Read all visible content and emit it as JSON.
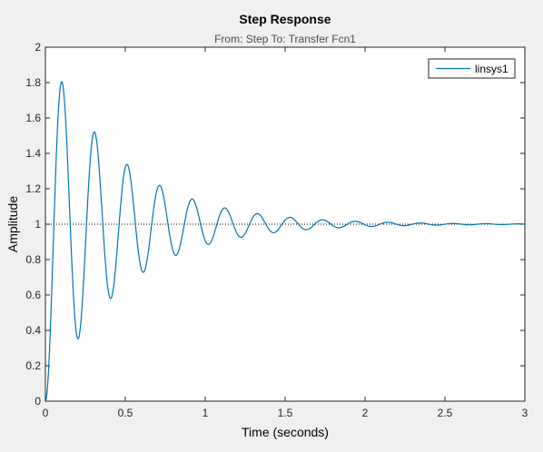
{
  "chart_data": {
    "type": "line",
    "title": "Step Response",
    "subtitle": "From: Step  To: Transfer Fcn1",
    "xlabel": "Time (seconds)",
    "ylabel": "Amplitude",
    "xlim": [
      0,
      3
    ],
    "ylim": [
      0,
      2
    ],
    "xticks": [
      0,
      0.5,
      1,
      1.5,
      2,
      2.5,
      3
    ],
    "xtick_labels": [
      "0",
      "0.5",
      "1",
      "1.5",
      "2",
      "2.5",
      "3"
    ],
    "yticks": [
      0,
      0.2,
      0.4,
      0.6,
      0.8,
      1,
      1.2,
      1.4,
      1.6,
      1.8,
      2
    ],
    "ytick_labels": [
      "0",
      "0.2",
      "0.4",
      "0.6",
      "0.8",
      "1",
      "1.2",
      "1.4",
      "1.6",
      "1.8",
      "2"
    ],
    "grid": false,
    "legend_position": "top-right",
    "reference_line": {
      "y": 1,
      "style": "dotted",
      "color": "#000000"
    },
    "series": [
      {
        "name": "linsys1",
        "color": "#0072bd",
        "model": "second-order underdamped step response",
        "steady_state": 1,
        "peak_time": 0.102,
        "peak_value": 1.805,
        "oscillation_period": 0.204,
        "points": [
          [
            0,
            0
          ],
          [
            0.102,
            1.805
          ],
          [
            0.204,
            0.35
          ],
          [
            0.306,
            1.53
          ],
          [
            0.408,
            0.57
          ],
          [
            0.51,
            1.35
          ],
          [
            0.612,
            0.715
          ],
          [
            0.714,
            1.23
          ],
          [
            0.816,
            0.81
          ],
          [
            0.918,
            1.15
          ],
          [
            1.02,
            0.875
          ],
          [
            1.122,
            1.1
          ],
          [
            1.224,
            0.915
          ],
          [
            1.326,
            1.067
          ],
          [
            1.428,
            0.943
          ],
          [
            1.53,
            1.045
          ],
          [
            1.632,
            0.962
          ],
          [
            1.734,
            1.03
          ],
          [
            1.836,
            0.974
          ],
          [
            1.938,
            1.021
          ],
          [
            2.04,
            0.982
          ],
          [
            2.142,
            1.014
          ],
          [
            2.244,
            0.988
          ],
          [
            2.346,
            1.009
          ],
          [
            2.448,
            0.992
          ],
          [
            2.55,
            1.006
          ],
          [
            2.652,
            0.995
          ],
          [
            2.754,
            1.004
          ],
          [
            2.856,
            0.997
          ],
          [
            2.958,
            1.003
          ],
          [
            3.0,
            1.0
          ]
        ]
      }
    ]
  }
}
